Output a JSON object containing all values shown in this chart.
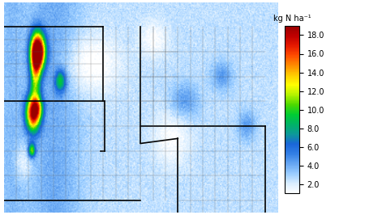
{
  "title": "",
  "colorbar_label": "kg N ha⁻¹",
  "colorbar_ticks": [
    2.0,
    4.0,
    6.0,
    8.0,
    10.0,
    12.0,
    14.0,
    16.0,
    18.0
  ],
  "vmin": 1.0,
  "vmax": 19.0,
  "extent": [
    -125.0,
    -103.0,
    41.5,
    50.0
  ],
  "figsize": [
    4.5,
    2.66
  ],
  "dpi": 100,
  "background_color": "#a8c8e8",
  "colormap": "jet",
  "hotspot_puget": {
    "lon": -122.3,
    "lat": 48.0,
    "intensity": 19.0,
    "sigma_lon": 0.4,
    "sigma_lat": 0.5
  },
  "hotspot_seattle_corridor": {
    "lon": -122.5,
    "lat": 47.2,
    "intensity": 14.0,
    "sigma_lon": 0.3,
    "sigma_lat": 0.8
  },
  "hotspot_portland": {
    "lon": -122.7,
    "lat": 45.5,
    "intensity": 15.0,
    "sigma_lon": 0.4,
    "sigma_lat": 0.5
  },
  "hotspot_portland2": {
    "lon": -122.3,
    "lat": 45.7,
    "intensity": 10.0,
    "sigma_lon": 0.3,
    "sigma_lat": 0.3
  },
  "baseline_value": 2.5,
  "coastal_boost": 1.5
}
